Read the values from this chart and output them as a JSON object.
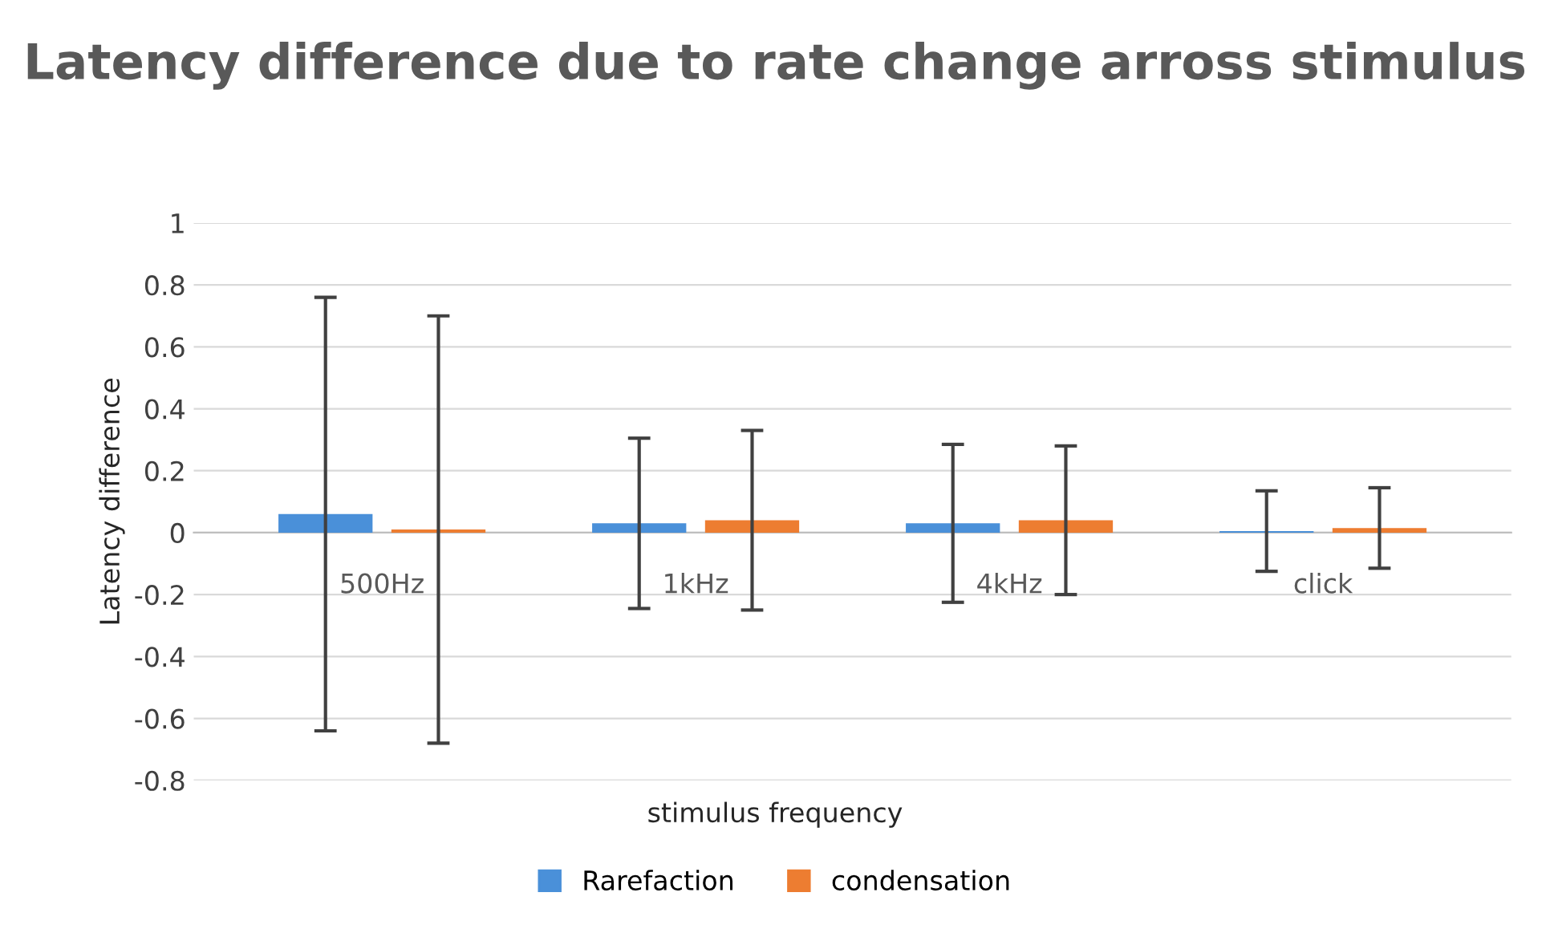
{
  "chart_data": {
    "type": "bar",
    "title": "Latency difference due to rate change arross stimulus",
    "xlabel": "stimulus frequency",
    "ylabel": "Latency difference",
    "categories": [
      "500Hz",
      "1kHz",
      "4kHz",
      "click"
    ],
    "series": [
      {
        "name": "Rarefaction",
        "color": "#4a90d9",
        "values": [
          0.06,
          0.03,
          0.03,
          0.005
        ],
        "errors": [
          0.7,
          0.275,
          0.255,
          0.13
        ]
      },
      {
        "name": "condensation",
        "color": "#ed7d31",
        "values": [
          0.01,
          0.04,
          0.04,
          0.015
        ],
        "errors": [
          0.69,
          0.29,
          0.24,
          0.13
        ]
      }
    ],
    "ylim": [
      -0.8,
      1
    ],
    "yticks": [
      -0.8,
      -0.6,
      -0.4,
      -0.2,
      0,
      0.2,
      0.4,
      0.6,
      0.8,
      1
    ],
    "grid": "y",
    "legend": "bottom"
  }
}
